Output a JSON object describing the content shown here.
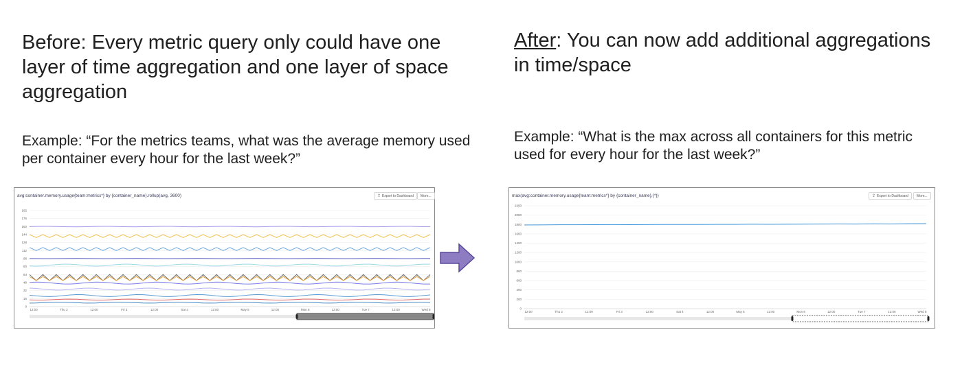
{
  "before": {
    "heading_lead": "Before",
    "heading_rest": ": Every metric query only could have one layer of time aggregation and one layer of space aggregation",
    "example": "Example:  “For the metrics teams, what was the average memory used per container every hour for the last week?”",
    "panel": {
      "query": "avg:container.memory.usage{team:metrics*} by {container_name}.rollup(avg, 3600)",
      "export_label": "Export to Dashboard",
      "more_label": "More..."
    }
  },
  "after": {
    "heading_lead": "After",
    "heading_rest": ": You can now add additional aggregations in time/space",
    "example": "Example:  “What is the max across all containers for this metric used for every hour for the last week?”",
    "panel": {
      "query": "max(avg:container.memory.usage{team:metrics*} by {container_name},{*})",
      "export_label": "Export to Dashboard",
      "more_label": "More..."
    }
  },
  "arrow_color": "#8e7cc3",
  "chart_data": [
    {
      "type": "line",
      "title": "avg:container.memory.usage{team:metrics*} by {container_name}.rollup(avg, 3600)",
      "x_ticks": [
        "12:00",
        "Thu 2",
        "12:00",
        "Fri 3",
        "12:00",
        "Sat 4",
        "12:00",
        "May 5",
        "12:00",
        "Mon 6",
        "12:00",
        "Tue 7",
        "12:00",
        "Wed 8"
      ],
      "y_ticks": [
        0,
        16,
        32,
        48,
        64,
        80,
        96,
        112,
        128,
        144,
        160,
        176,
        192
      ],
      "ylim": [
        0,
        192
      ],
      "series": [
        {
          "color": "#a79bf0",
          "level": 160,
          "amp": 0.5,
          "zig": false
        },
        {
          "color": "#f2c14e",
          "level": 141,
          "amp": 3,
          "zig": true
        },
        {
          "color": "#6fa8dc",
          "level": 115,
          "amp": 3,
          "zig": true
        },
        {
          "color": "#4e4ec0",
          "level": 96,
          "amp": 0.3,
          "zig": false
        },
        {
          "color": "#9bd7e6",
          "level": 83,
          "amp": 2,
          "zig": false
        },
        {
          "color": "#6b6b6b",
          "level": 58,
          "amp": 6,
          "zig": true
        },
        {
          "color": "#e6a23c",
          "level": 56,
          "amp": 4,
          "zig": true
        },
        {
          "color": "#7b7be8",
          "level": 47,
          "amp": 2,
          "zig": false
        },
        {
          "color": "#b4b4f0",
          "level": 35,
          "amp": 2,
          "zig": false
        },
        {
          "color": "#5b9bd5",
          "level": 22,
          "amp": 2,
          "zig": false
        },
        {
          "color": "#e06666",
          "level": 14,
          "amp": 1,
          "zig": false
        },
        {
          "color": "#3d85c6",
          "level": 8,
          "amp": 1,
          "zig": false
        }
      ]
    },
    {
      "type": "line",
      "title": "max(avg:container.memory.usage{team:metrics*} by {container_name},{*})",
      "x_ticks": [
        "12:00",
        "Thu 2",
        "12:00",
        "Fri 3",
        "12:00",
        "Sat 4",
        "12:00",
        "May 5",
        "12:00",
        "Mon 6",
        "12:00",
        "Tue 7",
        "12:00",
        "Wed 8"
      ],
      "y_ticks": [
        0,
        200,
        400,
        600,
        800,
        1000,
        1200,
        1400,
        1600,
        1800,
        2000,
        2200
      ],
      "ylim": [
        0,
        2200
      ],
      "series": [
        {
          "color": "#4a9ee0",
          "values": [
            1790,
            1792,
            1794,
            1795,
            1796,
            1798,
            1797,
            1799,
            1800,
            1801,
            1800,
            1802,
            1803,
            1805,
            1804,
            1806,
            1808,
            1810,
            1812,
            1810,
            1815,
            1812,
            1818,
            1820
          ]
        }
      ]
    }
  ]
}
